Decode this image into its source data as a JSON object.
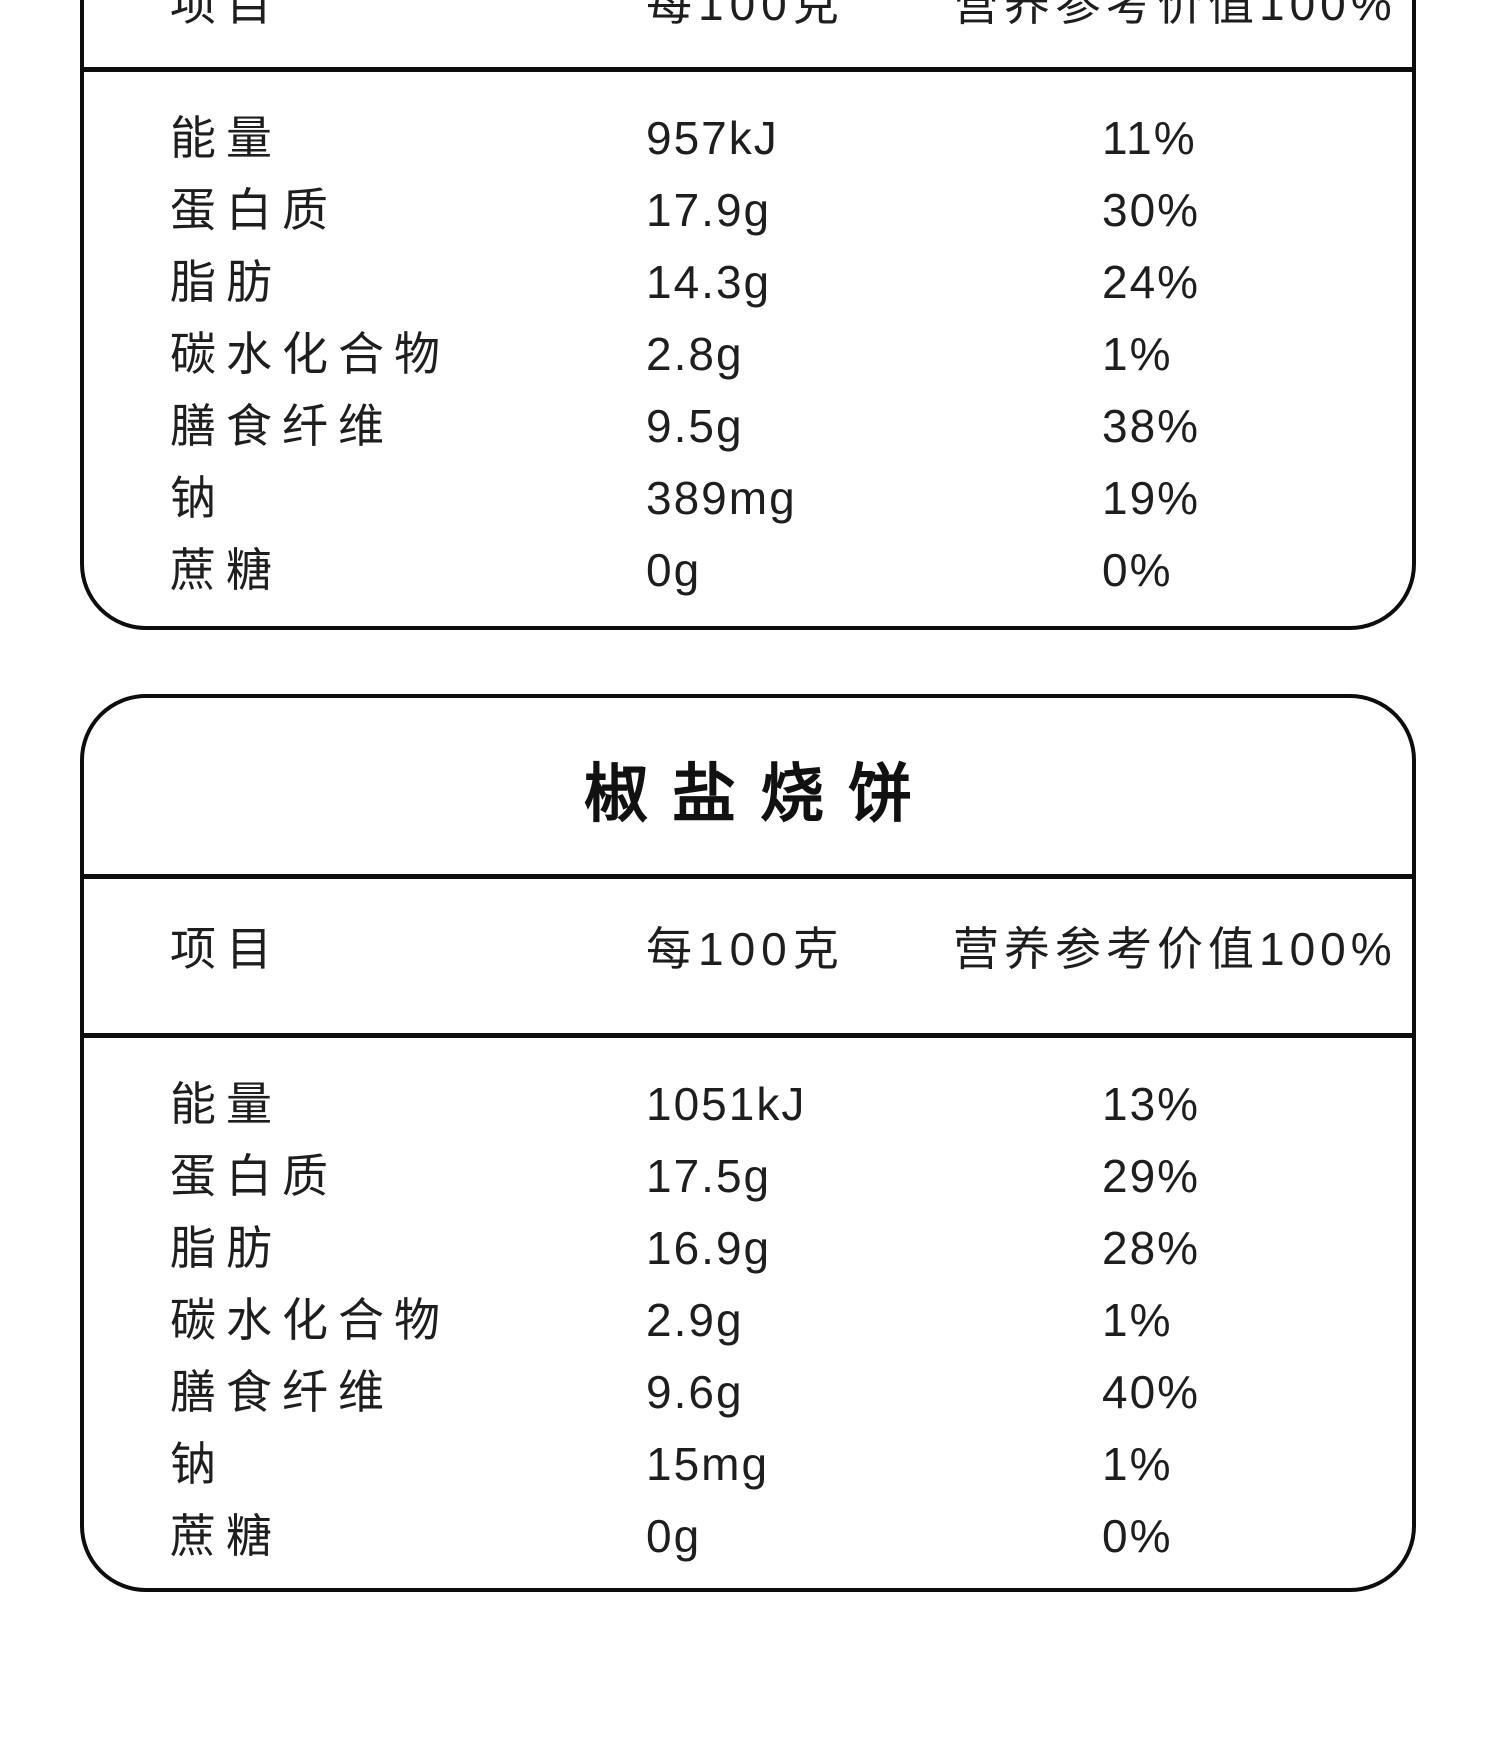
{
  "colors": {
    "background": "#ffffff",
    "line": "#0d0d0d",
    "text": "#1e1e1e"
  },
  "column_headers": {
    "item": "项目",
    "per_100g": "每100克",
    "nrv": "营养参考价值100%"
  },
  "tables": [
    {
      "title": "",
      "rows": [
        {
          "label": "能量",
          "value": "957kJ",
          "percent": "11%"
        },
        {
          "label": "蛋白质",
          "value": "17.9g",
          "percent": "30%"
        },
        {
          "label": "脂肪",
          "value": "14.3g",
          "percent": "24%"
        },
        {
          "label": "碳水化合物",
          "value": "2.8g",
          "percent": "1%"
        },
        {
          "label": "膳食纤维",
          "value": "9.5g",
          "percent": "38%"
        },
        {
          "label": "钠",
          "value": "389mg",
          "percent": "19%"
        },
        {
          "label": "蔗糖",
          "value": "0g",
          "percent": "0%"
        }
      ]
    },
    {
      "title": "椒盐烧饼",
      "rows": [
        {
          "label": "能量",
          "value": "1051kJ",
          "percent": "13%"
        },
        {
          "label": "蛋白质",
          "value": "17.5g",
          "percent": "29%"
        },
        {
          "label": "脂肪",
          "value": "16.9g",
          "percent": "28%"
        },
        {
          "label": "碳水化合物",
          "value": "2.9g",
          "percent": "1%"
        },
        {
          "label": "膳食纤维",
          "value": "9.6g",
          "percent": "40%"
        },
        {
          "label": "钠",
          "value": "15mg",
          "percent": "1%"
        },
        {
          "label": "蔗糖",
          "value": "0g",
          "percent": "0%"
        }
      ]
    }
  ]
}
